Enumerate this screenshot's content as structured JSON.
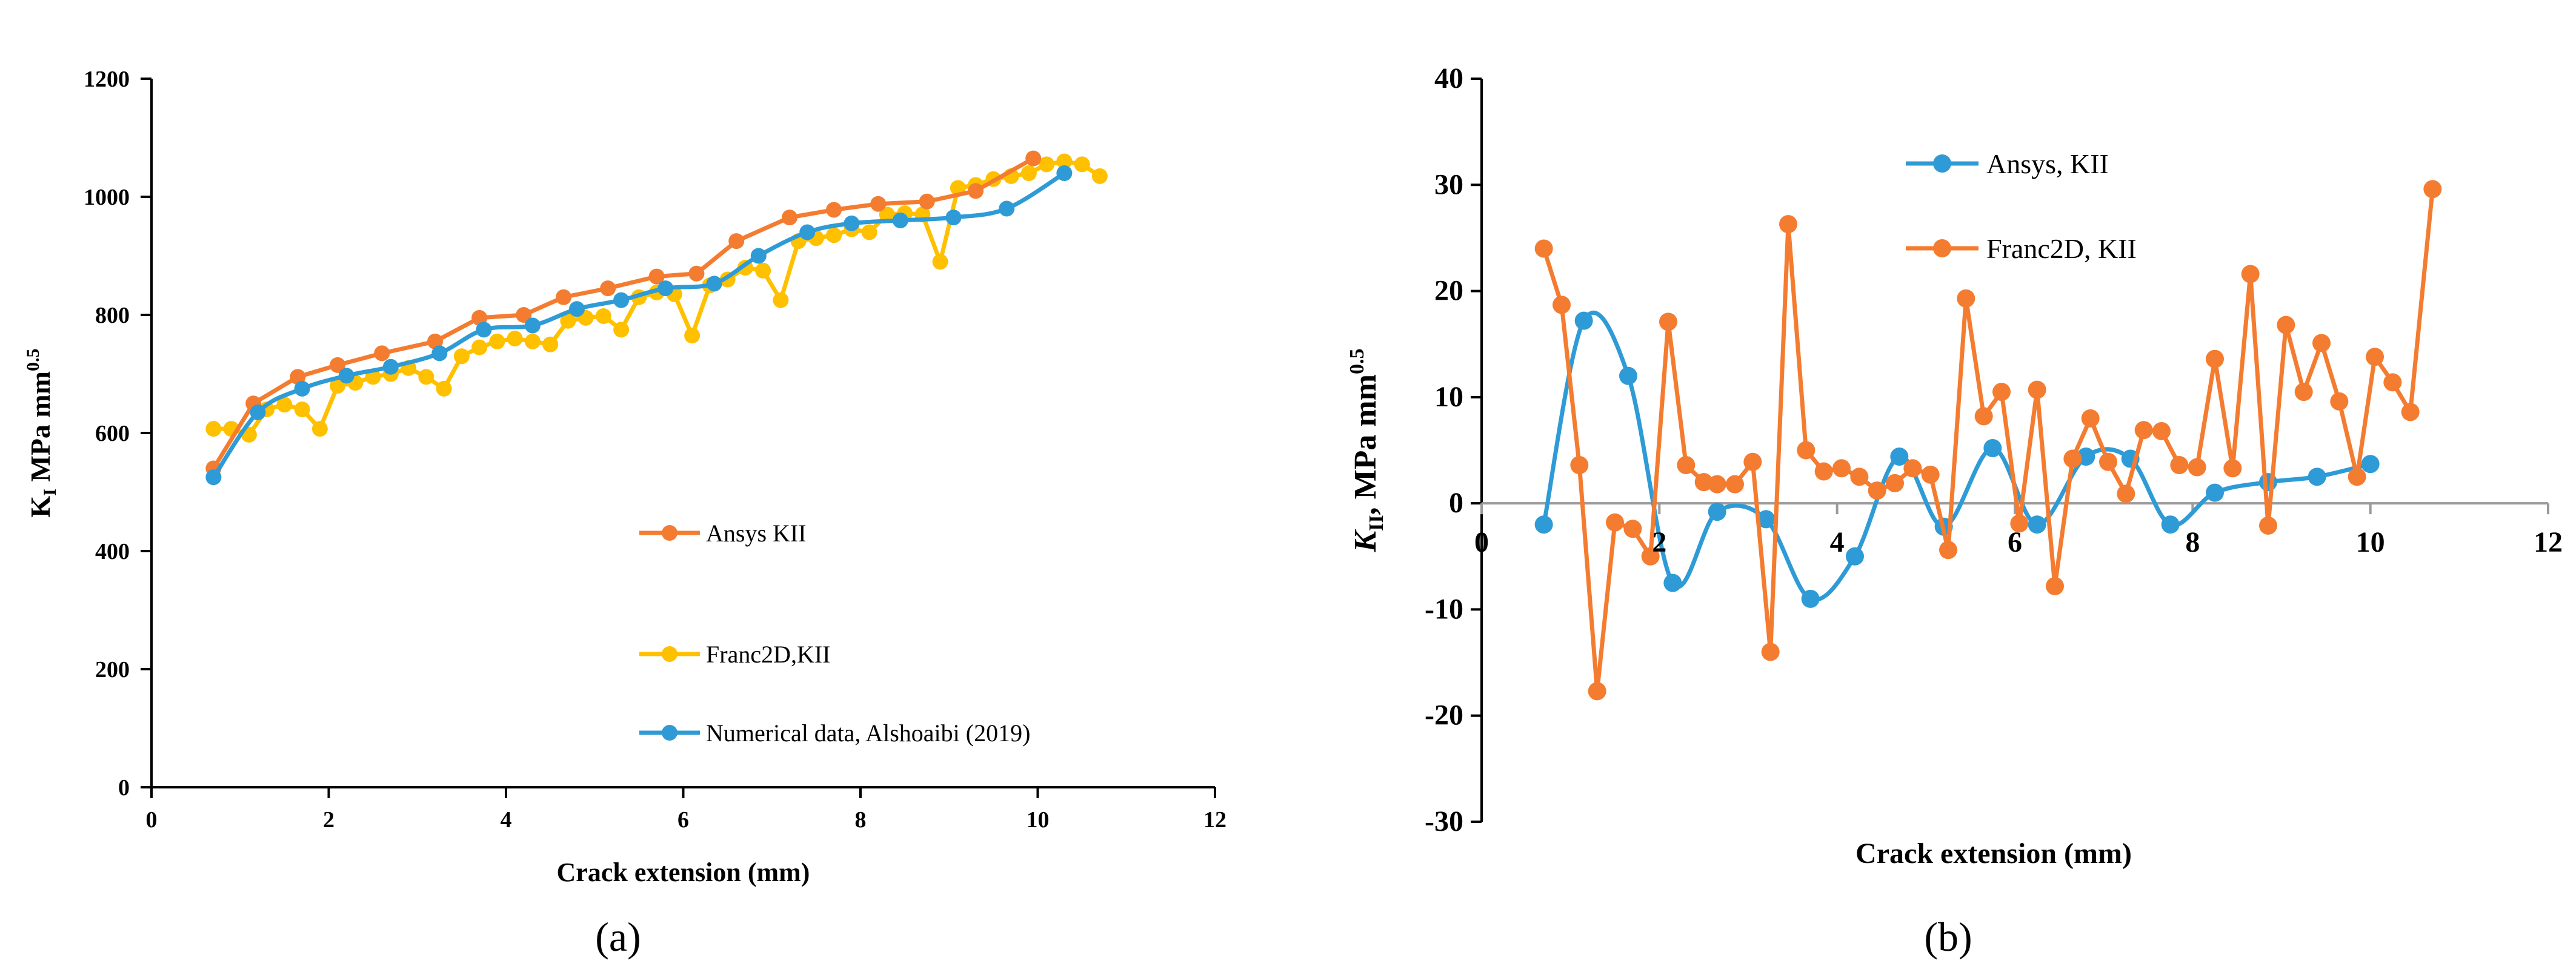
{
  "chart_data": [
    {
      "type": "line",
      "panel_label": "(a)",
      "xlabel": "Crack extension (mm)",
      "ylabel": "K",
      "ylabel_sub": "I",
      "ylabel_unit": " MPa mm",
      "ylabel_sup": "0.5",
      "xlim": [
        0,
        12
      ],
      "ylim": [
        0,
        1200
      ],
      "xticks": [
        0,
        2,
        4,
        6,
        8,
        10,
        12
      ],
      "yticks": [
        0,
        200,
        400,
        600,
        800,
        1000,
        1200
      ],
      "grid": false,
      "legend_position": "center-right",
      "series": [
        {
          "name": "Ansys KII",
          "color": "#F47C30",
          "smooth": false,
          "x": [
            0.7,
            1.15,
            1.65,
            2.1,
            2.6,
            3.2,
            3.7,
            4.2,
            4.65,
            5.15,
            5.7,
            6.15,
            6.6,
            7.2,
            7.7,
            8.2,
            8.75,
            9.3,
            9.95
          ],
          "y": [
            540,
            650,
            695,
            715,
            735,
            755,
            795,
            800,
            830,
            845,
            865,
            870,
            925,
            965,
            978,
            988,
            992,
            1010,
            1065
          ]
        },
        {
          "name": "Franc2D,KII",
          "color": "#FFC000",
          "smooth": false,
          "x": [
            0.7,
            0.9,
            1.1,
            1.3,
            1.5,
            1.7,
            1.9,
            2.1,
            2.3,
            2.5,
            2.7,
            2.9,
            3.1,
            3.3,
            3.5,
            3.7,
            3.9,
            4.1,
            4.3,
            4.5,
            4.7,
            4.9,
            5.1,
            5.3,
            5.5,
            5.7,
            5.9,
            6.1,
            6.3,
            6.5,
            6.7,
            6.9,
            7.1,
            7.3,
            7.5,
            7.7,
            7.9,
            8.1,
            8.3,
            8.5,
            8.7,
            8.9,
            9.1,
            9.3,
            9.5,
            9.7,
            9.9,
            10.1,
            10.3,
            10.5,
            10.7
          ],
          "y": [
            607,
            607,
            597,
            640,
            648,
            640,
            607,
            680,
            685,
            695,
            700,
            710,
            695,
            675,
            730,
            745,
            755,
            760,
            755,
            750,
            790,
            795,
            798,
            775,
            830,
            838,
            835,
            765,
            850,
            860,
            880,
            875,
            825,
            925,
            930,
            935,
            945,
            940,
            970,
            972,
            970,
            890,
            1015,
            1020,
            1030,
            1035,
            1040,
            1055,
            1060,
            1055,
            1035
          ]
        },
        {
          "name": "Numerical data, Alshoaibi (2019)",
          "color": "#2E9BD6",
          "smooth": true,
          "x": [
            0.7,
            1.2,
            1.7,
            2.2,
            2.7,
            3.25,
            3.75,
            4.3,
            4.8,
            5.3,
            5.8,
            6.35,
            6.85,
            7.4,
            7.9,
            8.45,
            9.05,
            9.65,
            10.3
          ],
          "y": [
            525,
            635,
            675,
            697,
            712,
            735,
            775,
            782,
            810,
            825,
            845,
            853,
            900,
            940,
            955,
            960,
            965,
            980,
            1040
          ]
        }
      ]
    },
    {
      "type": "line",
      "panel_label": "(b)",
      "xlabel": "Crack extension (mm)",
      "ylabel": "K",
      "ylabel_sub": "II",
      "ylabel_unit": ", MPa mm",
      "ylabel_sup": "0.5",
      "xlim": [
        0,
        12
      ],
      "ylim": [
        -30,
        40
      ],
      "xticks": [
        0,
        2,
        4,
        6,
        8,
        10,
        12
      ],
      "yticks": [
        -30,
        -20,
        -10,
        0,
        10,
        20,
        30,
        40
      ],
      "grid": false,
      "legend_position": "top-center",
      "series": [
        {
          "name": "Ansys, KII",
          "color": "#2E9BD6",
          "smooth": true,
          "x": [
            0.7,
            1.15,
            1.65,
            2.15,
            2.65,
            3.2,
            3.7,
            4.2,
            4.7,
            5.2,
            5.75,
            6.25,
            6.8,
            7.3,
            7.75,
            8.25,
            8.85,
            9.4,
            10.0
          ],
          "y": [
            -2,
            17.2,
            12,
            -7.5,
            -0.8,
            -1.5,
            -9,
            -5,
            4.4,
            -2.2,
            5.2,
            -2,
            4.4,
            4.2,
            -2,
            1,
            2,
            2.5,
            3.7
          ]
        },
        {
          "name": "Franc2D, KII",
          "color": "#F47C30",
          "smooth": false,
          "x": [
            0.7,
            0.9,
            1.1,
            1.3,
            1.5,
            1.7,
            1.9,
            2.1,
            2.3,
            2.5,
            2.65,
            2.85,
            3.05,
            3.25,
            3.45,
            3.65,
            3.85,
            4.05,
            4.25,
            4.45,
            4.65,
            4.85,
            5.05,
            5.25,
            5.45,
            5.65,
            5.85,
            6.05,
            6.25,
            6.45,
            6.65,
            6.85,
            7.05,
            7.25,
            7.45,
            7.65,
            7.85,
            8.05,
            8.25,
            8.45,
            8.65,
            8.85,
            9.05,
            9.25,
            9.45,
            9.65,
            9.85,
            10.05,
            10.25,
            10.45,
            10.7
          ],
          "y": [
            24,
            18.7,
            3.6,
            -17.7,
            -1.8,
            -2.4,
            -5,
            17.1,
            3.6,
            2,
            1.8,
            1.8,
            3.9,
            -14,
            26.3,
            5,
            3,
            3.3,
            2.5,
            1.2,
            1.9,
            3.3,
            2.7,
            -4.4,
            19.3,
            8.2,
            10.5,
            -1.9,
            10.7,
            -7.8,
            4.2,
            8,
            3.9,
            0.9,
            6.9,
            6.8,
            3.6,
            3.4,
            13.6,
            3.3,
            21.6,
            -2.1,
            16.8,
            10.5,
            15.1,
            9.6,
            2.5,
            13.8,
            11.4,
            8.6,
            29.6
          ]
        }
      ]
    }
  ]
}
